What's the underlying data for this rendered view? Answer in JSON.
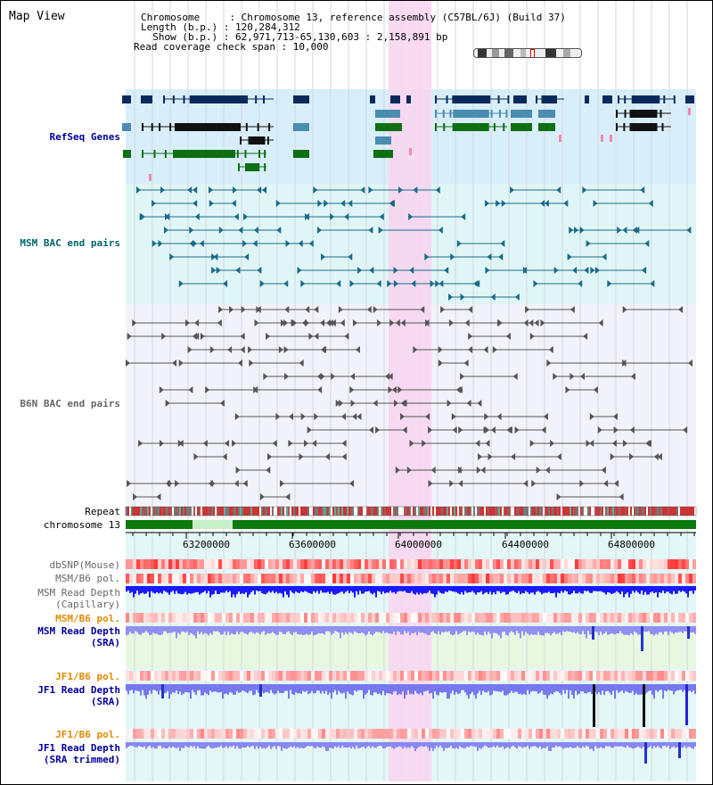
{
  "view": {
    "title": "Map View",
    "info_lines": [
      "Chromosome     : Chromosome 13, reference assembly (C57BL/6J) (Build 37)",
      "Length (b.p.) : 120,284,312",
      "  Show (b.p.) : 62,971,713-65,130,603 : 2,158,891 bp",
      "Read coverage check span : 10,000"
    ]
  },
  "tracks": {
    "refseq": "RefSeq Genes",
    "msm_bac": "MSM BAC end pairs",
    "b6n_bac": "B6N BAC end pairs",
    "repeat": "Repeat",
    "chromosome": "chromosome 13",
    "dbsnp": "dbSNP(Mouse)",
    "msm_b6_pol_1": "MSM/B6 pol.",
    "msm_depth_cap_1": "MSM Read Depth",
    "msm_depth_cap_2": "(Capillary)",
    "msm_b6_pol_2": "MSM/B6 pol.",
    "msm_depth_sra_1": "MSM Read Depth",
    "msm_depth_sra_2": "(SRA)",
    "jf1_b6_pol_1": "JF1/B6 pol.",
    "jf1_depth_sra_1": "JF1 Read Depth",
    "jf1_depth_sra_2": "(SRA)",
    "jf1_b6_pol_2": "JF1/B6 pol.",
    "jf1_depth_trim_1": "JF1 Read Depth",
    "jf1_depth_trim_2": "(SRA trimmed)"
  },
  "axis": {
    "ticks": [
      "63200000",
      "63600000",
      "64000000",
      "64400000",
      "64800000"
    ]
  },
  "colors": {
    "refseq_bg": "#d8eefa",
    "msm_bg": "#e0f6f6",
    "b6n_bg": "#f2f2fa",
    "highlight": "#f7d6f0",
    "refseq_dark": "#0b2a5c",
    "refseq_mid": "#4a8db0",
    "refseq_green": "#0f6e12",
    "msm_line": "#1a6a8a",
    "b6n_line": "#555555",
    "label_blue": "#000099",
    "label_teal": "#006666",
    "label_orange": "#e08a00",
    "label_gray": "#666666"
  }
}
